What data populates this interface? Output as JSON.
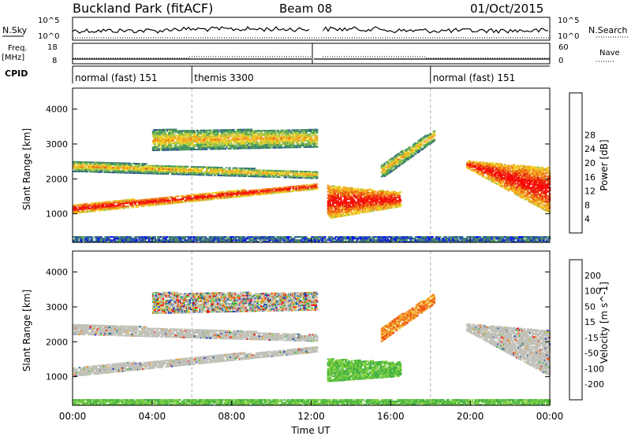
{
  "header": {
    "title": "Buckland Park (fitACF)",
    "beam": "Beam 08",
    "date": "01/Oct/2015"
  },
  "meta_panels": {
    "nsky_label": "N.Sky",
    "nsky_ticks": [
      "10^5",
      "10^0"
    ],
    "nsearch_label": "N.Search",
    "nsearch_ticks": [
      "10^5",
      "10^0"
    ],
    "freq_label": "Freq.",
    "freq_unit": "[MHz]",
    "freq_ticks": [
      "18",
      "8"
    ],
    "nave_label": "Nave",
    "nave_ticks": [
      "60",
      "0"
    ],
    "cpid_label": "CPID",
    "cpid_segments": [
      {
        "label": "normal (fast) 151",
        "start_h": 0,
        "end_h": 6
      },
      {
        "label": "themis 3300",
        "start_h": 6,
        "end_h": 18
      },
      {
        "label": "normal (fast) 151",
        "start_h": 18,
        "end_h": 24
      }
    ]
  },
  "chart_data": [
    {
      "type": "heatmap",
      "name": "power",
      "xlabel": "",
      "ylabel": "Slant Range [km]",
      "xlim": [
        0,
        24
      ],
      "ylim": [
        180,
        4600
      ],
      "yticks": [
        1000,
        2000,
        3000,
        4000
      ],
      "colorbar": {
        "label": "Power [dB]",
        "ticks": [
          "4",
          "8",
          "12",
          "16",
          "20",
          "24",
          "28"
        ]
      },
      "scatter_bands": [
        {
          "t_start": 0.0,
          "t_end": 12.3,
          "range_start": 1000,
          "range_end": 1250,
          "end_start": 1700,
          "end_end": 1850,
          "level": "high"
        },
        {
          "t_start": 0.0,
          "t_end": 12.3,
          "range_start": 2200,
          "range_end": 2500,
          "end_start": 2000,
          "end_end": 2200,
          "level": "medium"
        },
        {
          "t_start": 4.0,
          "t_end": 12.3,
          "range_start": 2800,
          "range_end": 3400,
          "end_start": 2900,
          "end_end": 3400,
          "level": "medium"
        },
        {
          "t_start": 12.8,
          "t_end": 16.5,
          "range_start": 850,
          "range_end": 1800,
          "end_start": 1200,
          "end_end": 1600,
          "level": "high"
        },
        {
          "t_start": 15.5,
          "t_end": 18.2,
          "range_start": 2000,
          "range_end": 2400,
          "end_start": 3100,
          "end_end": 3400,
          "level": "medium"
        },
        {
          "t_start": 19.8,
          "t_end": 24.0,
          "range_start": 2300,
          "range_end": 2500,
          "end_start": 1000,
          "end_end": 2300,
          "level": "high"
        },
        {
          "t_start": 0.0,
          "t_end": 24.0,
          "range_start": 180,
          "range_end": 350,
          "end_start": 180,
          "end_end": 350,
          "level": "low"
        }
      ]
    },
    {
      "type": "heatmap",
      "name": "velocity",
      "xlabel": "Time UT",
      "ylabel": "Slant Range [km]",
      "xlim": [
        0,
        24
      ],
      "ylim": [
        180,
        4600
      ],
      "yticks": [
        1000,
        2000,
        3000,
        4000
      ],
      "xticks": [
        "00:00",
        "04:00",
        "08:00",
        "12:00",
        "16:00",
        "20:00",
        "00:00"
      ],
      "colorbar": {
        "label": "Velocity [m s^-1]",
        "ticks": [
          "200",
          "100",
          "50",
          "15",
          "-15",
          "-50",
          "-100",
          "-200"
        ]
      },
      "scatter_bands": [
        {
          "t_start": 0.0,
          "t_end": 12.3,
          "range_start": 1000,
          "range_end": 1250,
          "end_start": 1700,
          "end_end": 1850,
          "level": "ground"
        },
        {
          "t_start": 0.0,
          "t_end": 12.3,
          "range_start": 2200,
          "range_end": 2500,
          "end_start": 2000,
          "end_end": 2200,
          "level": "ground"
        },
        {
          "t_start": 4.0,
          "t_end": 12.3,
          "range_start": 2800,
          "range_end": 3400,
          "end_start": 2900,
          "end_end": 3400,
          "level": "mixed"
        },
        {
          "t_start": 12.8,
          "t_end": 16.5,
          "range_start": 850,
          "range_end": 1500,
          "end_start": 1000,
          "end_end": 1400,
          "level": "positive"
        },
        {
          "t_start": 15.5,
          "t_end": 18.2,
          "range_start": 2000,
          "range_end": 2400,
          "end_start": 3100,
          "end_end": 3400,
          "level": "negative"
        },
        {
          "t_start": 19.8,
          "t_end": 24.0,
          "range_start": 2300,
          "range_end": 2500,
          "end_start": 1000,
          "end_end": 2300,
          "level": "ground"
        },
        {
          "t_start": 0.0,
          "t_end": 24.0,
          "range_start": 180,
          "range_end": 350,
          "end_start": 180,
          "end_end": 350,
          "level": "positive"
        }
      ]
    }
  ],
  "colors": {
    "power_scale": [
      "#0000ff",
      "#2a4fa8",
      "#3a7a6a",
      "#4aa05a",
      "#a8c848",
      "#f0d020",
      "#f0a020",
      "#f06010",
      "#e82010",
      "#ff0000"
    ],
    "velocity_scale": [
      "#2040c0",
      "#3070a0",
      "#40b040",
      "#80d040",
      "#c0c0b8",
      "#f0c040",
      "#f09020",
      "#f05010",
      "#ff0000"
    ],
    "ground_scatter": "#c0c0b8",
    "mode_line": "#b0b0b0"
  }
}
